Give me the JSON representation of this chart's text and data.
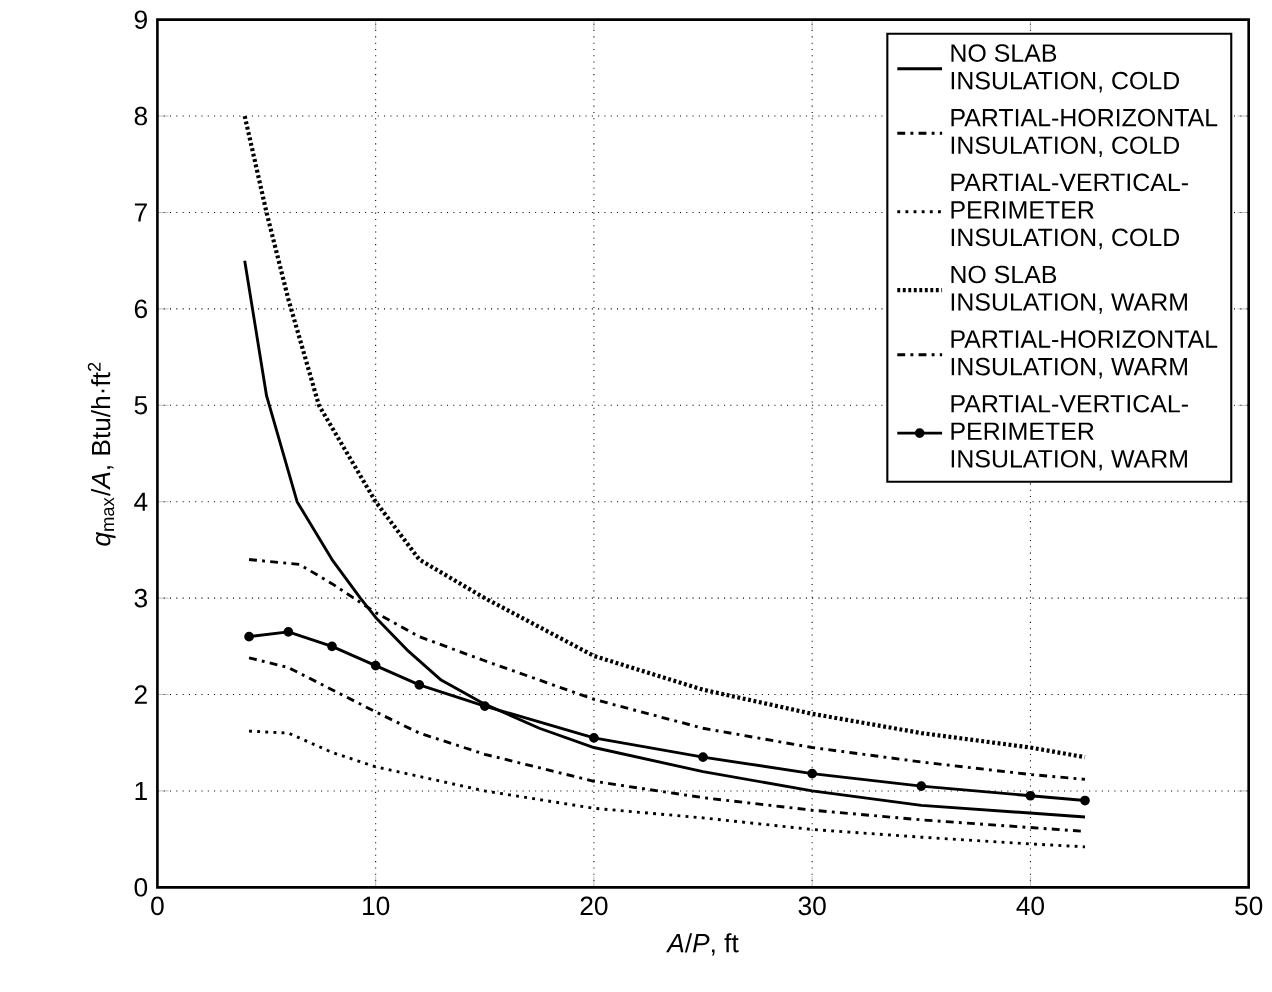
{
  "chart_data": {
    "type": "line",
    "xlabel": "*A*/*P*, ft",
    "ylabel": "*q*$_{max}$/*A*, Btu/h·ft$^{2}$",
    "xlim": [
      0,
      50
    ],
    "ylim": [
      0,
      9
    ],
    "xticks": [
      0,
      10,
      20,
      30,
      40,
      50
    ],
    "yticks": [
      0,
      1,
      2,
      3,
      4,
      5,
      6,
      7,
      8,
      9
    ],
    "grid": true,
    "legend": "top right",
    "series": [
      {
        "name": "NO SLAB INSULATION, COLD",
        "color": "#000000",
        "line_style": "solid",
        "marker": "none",
        "x": [
          4,
          5,
          6.4,
          8,
          9.3,
          10,
          11.5,
          13,
          15,
          17.5,
          20,
          25,
          30,
          35,
          40,
          42.5
        ],
        "values": [
          6.5,
          5.1,
          4.0,
          3.4,
          3.0,
          2.8,
          2.45,
          2.15,
          1.9,
          1.65,
          1.45,
          1.2,
          1.0,
          0.85,
          0.77,
          0.73
        ]
      },
      {
        "name": "PARTIAL-HORIZONTAL INSULATION, COLD",
        "color": "#000000",
        "line_style": "dashdot",
        "marker": "none",
        "x": [
          4.2,
          6,
          8,
          10,
          12,
          15,
          20,
          25,
          30,
          35,
          40,
          42.5
        ],
        "values": [
          2.38,
          2.28,
          2.05,
          1.82,
          1.6,
          1.38,
          1.1,
          0.93,
          0.8,
          0.7,
          0.62,
          0.58
        ]
      },
      {
        "name": "PARTIAL-VERTICAL-PERIMETER INSULATION, COLD",
        "color": "#000000",
        "line_style": "dotted",
        "marker": "none",
        "x": [
          4.2,
          6,
          8,
          10,
          15,
          20,
          25,
          30,
          35,
          40,
          42.5
        ],
        "values": [
          1.62,
          1.6,
          1.4,
          1.25,
          1.0,
          0.82,
          0.72,
          0.6,
          0.52,
          0.45,
          0.42
        ]
      },
      {
        "name": "NO SLAB INSULATION, WARM",
        "color": "#000000",
        "line_style": "dashed",
        "marker": "none",
        "x": [
          4,
          5,
          6,
          7.4,
          10,
          12,
          15,
          20,
          25,
          30,
          35,
          40,
          42.5
        ],
        "values": [
          8.0,
          7.0,
          6.1,
          5.0,
          4.0,
          3.4,
          3.0,
          2.4,
          2.05,
          1.8,
          1.6,
          1.45,
          1.35
        ]
      },
      {
        "name": "PARTIAL-HORIZONTAL INSULATION, WARM",
        "color": "#000000",
        "line_style": "dashdot",
        "marker": "none",
        "x": [
          4.2,
          6.5,
          8,
          10,
          12,
          15,
          20,
          25,
          30,
          35,
          40,
          42.5
        ],
        "values": [
          3.4,
          3.35,
          3.15,
          2.85,
          2.6,
          2.35,
          1.95,
          1.65,
          1.45,
          1.3,
          1.17,
          1.12
        ]
      },
      {
        "name": "PARTIAL-VERTICAL-PERIMETER INSULATION, WARM",
        "color": "#000000",
        "line_style": "solid",
        "marker": "circle",
        "x": [
          4.2,
          6,
          8,
          10,
          12,
          15,
          20,
          25,
          30,
          35,
          40,
          42.5
        ],
        "values": [
          2.6,
          2.65,
          2.5,
          2.3,
          2.1,
          1.88,
          1.55,
          1.35,
          1.18,
          1.05,
          0.95,
          0.9
        ]
      }
    ]
  }
}
